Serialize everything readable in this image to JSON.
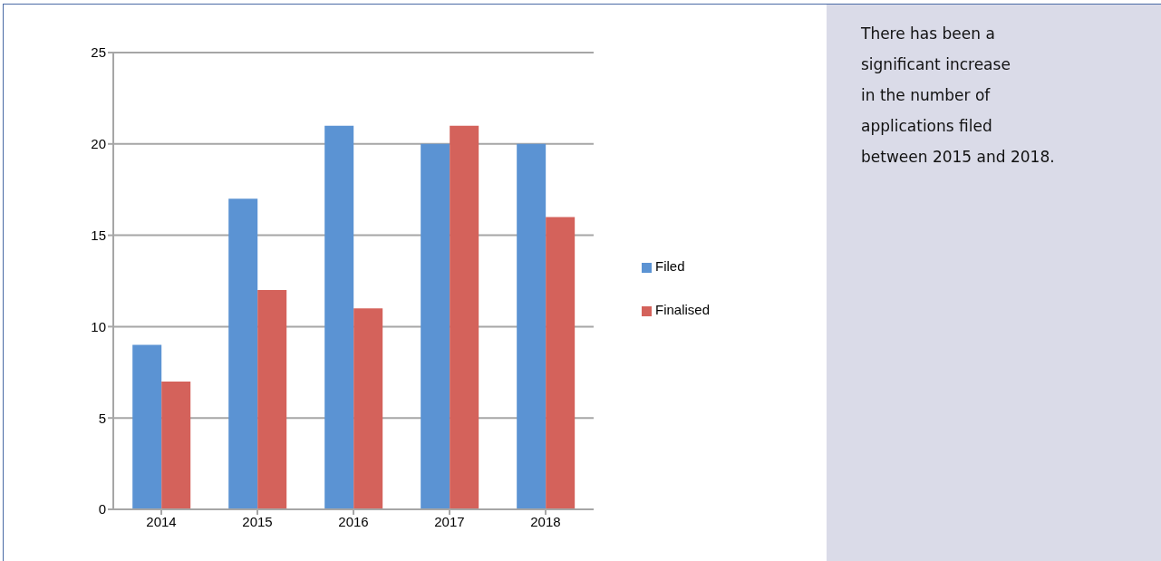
{
  "chart_data": {
    "type": "bar",
    "categories": [
      "2014",
      "2015",
      "2016",
      "2017",
      "2018"
    ],
    "series": [
      {
        "name": "Filed",
        "color": "#5b93d3",
        "values": [
          9,
          17,
          21,
          20,
          20
        ]
      },
      {
        "name": "Finalised",
        "color": "#d4625b",
        "values": [
          7,
          12,
          11,
          21,
          16
        ]
      }
    ],
    "ylim": [
      0,
      25
    ],
    "yticks": [
      0,
      5,
      10,
      15,
      20,
      25
    ],
    "grid": "y",
    "legend": "right",
    "annotations": [
      "There has been a\nsignificant increase\nin the number of\napplications filed\nbetween 2015 and 2018."
    ]
  }
}
